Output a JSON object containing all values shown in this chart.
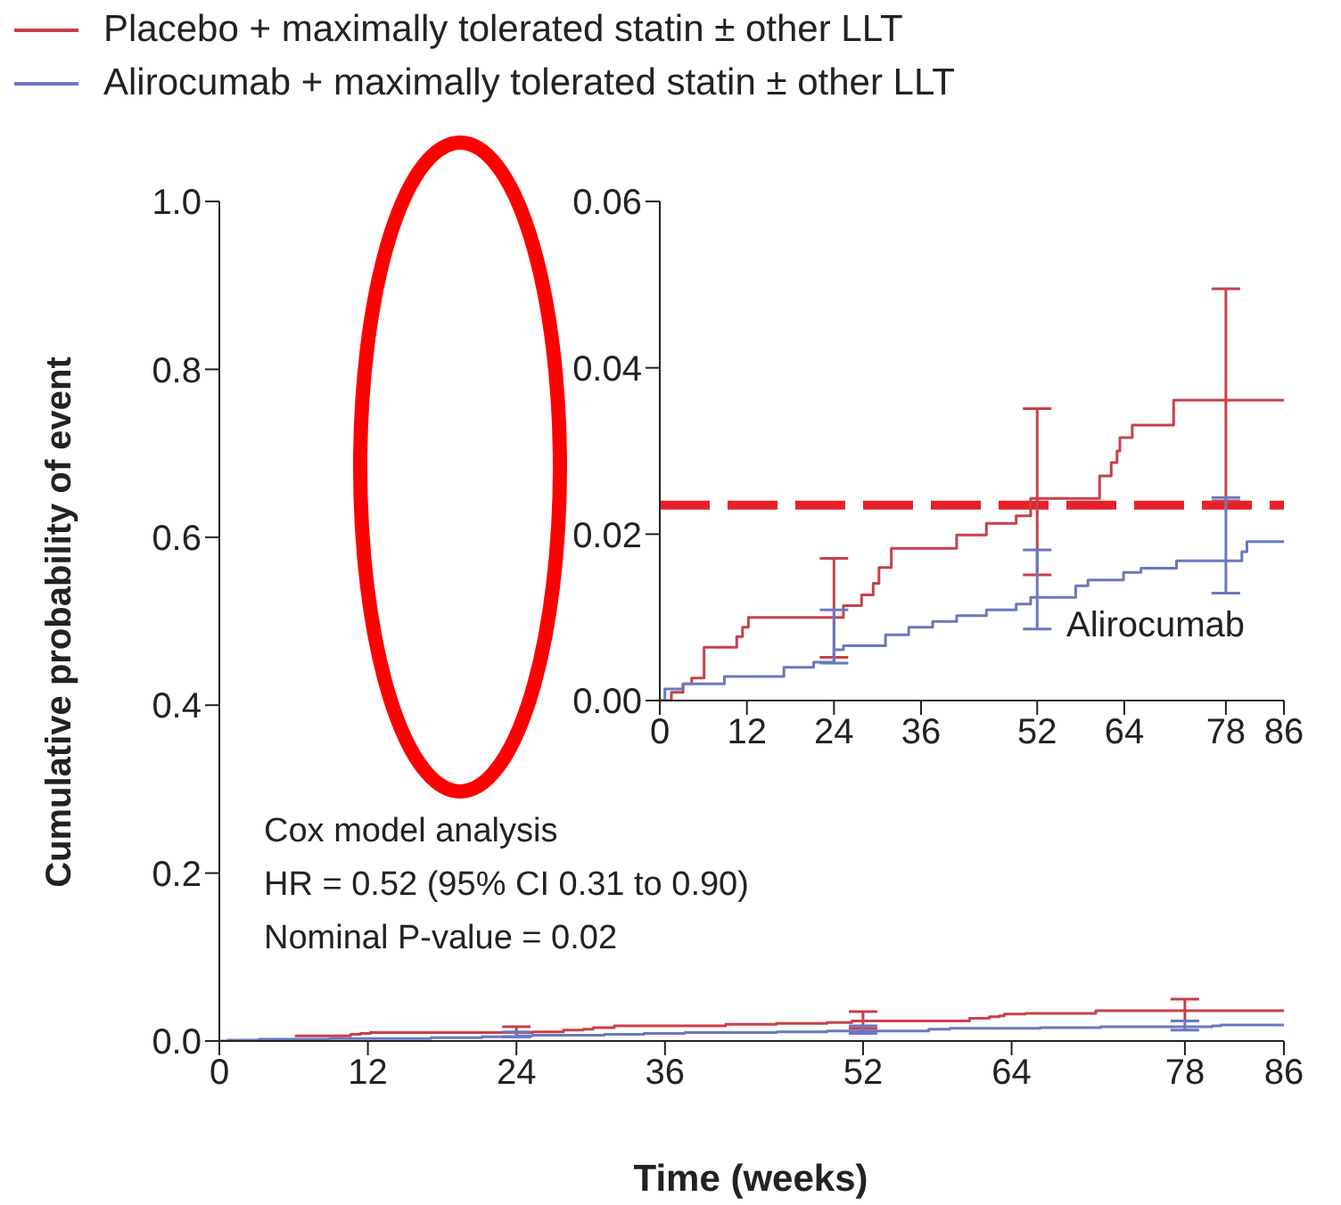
{
  "chart_data": [
    {
      "type": "step",
      "xlabel": "Time (weeks)",
      "ylabel": "Cumulative probability of event",
      "xlim": [
        0,
        86
      ],
      "xticks": [
        0,
        12,
        24,
        36,
        52,
        64,
        78,
        86
      ],
      "ylim": [
        0,
        1
      ],
      "yticks": [
        {
          "value": 0,
          "label": "0.0"
        },
        {
          "value": 0.2,
          "label": "0.2"
        },
        {
          "value": 0.4,
          "label": "0.4"
        },
        {
          "value": 0.6,
          "label": "0.6"
        },
        {
          "value": 0.8,
          "label": "0.8"
        },
        {
          "value": 1,
          "label": "1.0"
        }
      ],
      "legend": "top",
      "grid": false,
      "marker": "none",
      "annotations": [
        "Cox model analysis",
        "HR = 0.52 (95% CI 0.31 to 0.90)",
        "Nominal P-value = 0.02"
      ],
      "series": [
        {
          "name": "Placebo + maximally tolerated statin ± other LLT",
          "color": "#c8404a",
          "x": [
            6.1,
            10.6,
            11.4,
            12.2,
            24,
            25.3,
            27.8,
            29.4,
            30.2,
            31.9,
            40.9,
            45,
            49.1,
            51.1,
            52,
            60.6,
            62.2,
            63,
            63.4,
            65.1,
            70.8,
            78,
            86
          ],
          "values": [
            0.006,
            0.008,
            0.009,
            0.01,
            0.01,
            0.011,
            0.013,
            0.014,
            0.016,
            0.018,
            0.02,
            0.021,
            0.022,
            0.024,
            0.024,
            0.027,
            0.029,
            0.03,
            0.032,
            0.033,
            0.036,
            0.036,
            0.036
          ],
          "errors": [
            null,
            null,
            null,
            null,
            [
              0.005,
              0.017
            ],
            null,
            null,
            null,
            null,
            null,
            null,
            null,
            null,
            null,
            [
              0.015,
              0.035
            ],
            null,
            null,
            null,
            null,
            null,
            null,
            [
              0.024,
              0.05
            ],
            null
          ]
        },
        {
          "name": "Alirocumab + maximally tolerated statin ± other LLT",
          "color": "#6a78c0",
          "x": [
            0,
            0.7,
            3.2,
            8.9,
            17.1,
            21.2,
            24,
            25.3,
            31.1,
            34.3,
            37.6,
            40.9,
            45,
            49.1,
            51.1,
            52,
            57.3,
            59,
            63.9,
            66.3,
            71.2,
            78,
            80.2,
            80.9,
            86
          ],
          "values": [
            0,
            0.001,
            0.002,
            0.003,
            0.004,
            0.005,
            0.006,
            0.007,
            0.008,
            0.009,
            0.01,
            0.01,
            0.011,
            0.012,
            0.012,
            0.012,
            0.014,
            0.015,
            0.015,
            0.016,
            0.017,
            0.017,
            0.018,
            0.019,
            0.019
          ],
          "errors": [
            null,
            null,
            null,
            null,
            null,
            null,
            [
              0.005,
              0.011
            ],
            null,
            null,
            null,
            null,
            null,
            null,
            null,
            null,
            [
              0.009,
              0.018
            ],
            null,
            null,
            null,
            null,
            null,
            [
              0.013,
              0.024
            ],
            null,
            null,
            null
          ]
        }
      ]
    },
    {
      "type": "step",
      "xlim": [
        0,
        86
      ],
      "xticks": [
        0,
        12,
        24,
        36,
        52,
        64,
        78,
        86
      ],
      "ylim": [
        0,
        0.06
      ],
      "yticks": [
        {
          "value": 0,
          "label": "0.00"
        },
        {
          "value": 0.02,
          "label": "0.02"
        },
        {
          "value": 0.04,
          "label": "0.04"
        },
        {
          "value": 0.06,
          "label": "0.06"
        }
      ],
      "grid": false,
      "marker": "none",
      "ref_lines": [
        {
          "axis": "y",
          "value": 0.0235,
          "color": "#e8202a",
          "line_style": "dashed"
        }
      ],
      "series": [
        {
          "color": "#c8404a",
          "x": [
            0,
            1.6,
            3.2,
            4.4,
            6.1,
            10.6,
            11.4,
            12.2,
            24,
            25.3,
            27.8,
            29.4,
            30.2,
            31.9,
            40.9,
            45,
            49.1,
            51.1,
            52,
            60.6,
            62.2,
            63,
            63.4,
            65.1,
            70.8,
            78,
            86
          ],
          "values": [
            0,
            0.001,
            0.002,
            0.0027,
            0.0064,
            0.0077,
            0.0088,
            0.01,
            0.01,
            0.0114,
            0.0127,
            0.0141,
            0.016,
            0.0183,
            0.0199,
            0.0213,
            0.0222,
            0.0243,
            0.0243,
            0.027,
            0.0286,
            0.03,
            0.0316,
            0.0331,
            0.0361,
            0.0361,
            0.0361
          ],
          "errors": [
            null,
            null,
            null,
            null,
            null,
            null,
            null,
            null,
            [
              0.0052,
              0.0171
            ],
            null,
            null,
            null,
            null,
            null,
            null,
            null,
            null,
            null,
            [
              0.0151,
              0.0351
            ],
            null,
            null,
            null,
            null,
            null,
            null,
            [
              0.024,
              0.0495
            ],
            null
          ]
        },
        {
          "name": "Alirocumab",
          "color": "#6a78c0",
          "x": [
            0,
            0.7,
            3.2,
            8.9,
            17.1,
            21.2,
            24,
            25.3,
            31.1,
            34.3,
            37.6,
            40.9,
            45,
            49.1,
            51.1,
            52,
            57.3,
            59,
            63.9,
            66.3,
            71.2,
            78,
            80.2,
            80.9,
            86
          ],
          "values": [
            0,
            0.0014,
            0.002,
            0.0029,
            0.004,
            0.0046,
            0.0061,
            0.0066,
            0.0079,
            0.0088,
            0.0095,
            0.0102,
            0.0109,
            0.0116,
            0.0124,
            0.0124,
            0.0138,
            0.0145,
            0.0154,
            0.0159,
            0.0168,
            0.0168,
            0.0179,
            0.0191,
            0.0191
          ],
          "errors": [
            null,
            null,
            null,
            null,
            null,
            null,
            [
              0.0045,
              0.0109
            ],
            null,
            null,
            null,
            null,
            null,
            null,
            null,
            null,
            [
              0.0086,
              0.0181
            ],
            null,
            null,
            null,
            null,
            null,
            [
              0.0129,
              0.0244
            ],
            null,
            null,
            null
          ]
        }
      ]
    }
  ]
}
